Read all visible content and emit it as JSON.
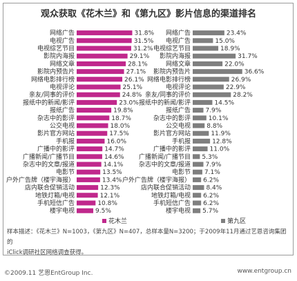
{
  "title": "观众获取《花木兰》和《第九区》影片信息的渠道排名",
  "colors": {
    "left_series": "#c0288c",
    "right_series": "#7f7f7f",
    "text": "#333333"
  },
  "chart_data": [
    {
      "type": "bar",
      "orientation": "horizontal",
      "series": [
        {
          "name": "花木兰",
          "color": "#c0288c"
        }
      ],
      "categories": [
        "网络广告",
        "电视广告",
        "电视综艺节目",
        "影院内海报",
        "网络文章",
        "影院内预告片",
        "网络电影排行榜",
        "电视评论",
        "亲友/同事的评价",
        "报纸中的新闻/影评",
        "报纸广告",
        "杂志中的影评",
        "公交电视",
        "影片官方网站",
        "手机报",
        "广播中的影评",
        "广播新闻/广播节目",
        "杂志中的文章/报道",
        "电影节",
        "户外广告牌（楼宇海报）",
        "店内联合促销活动",
        "地铁灯箱/电视",
        "手机短信广告",
        "楼宇电视"
      ],
      "values": [
        31.8,
        31.5,
        31.2,
        29.1,
        28.1,
        27.1,
        26.1,
        25.1,
        24.8,
        23.0,
        19.8,
        18.7,
        18.0,
        17.5,
        16.0,
        14.7,
        14.6,
        14.1,
        13.5,
        13.4,
        12.3,
        12.1,
        10.8,
        9.5
      ],
      "value_labels": [
        "31.8%",
        "31.5%",
        "31.2%",
        "29.1%",
        "28.1%",
        "27.1%",
        "26.1%",
        "25.1%",
        "24.8%",
        "23.0%",
        "19.8%",
        "18.7%",
        "18.0%",
        "17.5%",
        "16.0%",
        "14.7%",
        "14.6%",
        "14.1%",
        "13.5%",
        "13.4%",
        "12.3%",
        "12.1%",
        "10.8%",
        "9.5%"
      ],
      "legend": "花木兰"
    },
    {
      "type": "bar",
      "orientation": "horizontal",
      "series": [
        {
          "name": "第九区",
          "color": "#7f7f7f"
        }
      ],
      "categories": [
        "网络广告",
        "电视广告",
        "电视综艺节目",
        "影院内海报",
        "网络文章",
        "影院内预告片",
        "网络电影排行榜",
        "电视评论",
        "亲友/同事的评价",
        "报纸中的新闻/影评",
        "报纸广告",
        "杂志中的影评",
        "公交电视",
        "影片官方网站",
        "手机报",
        "广播中的影评",
        "广播新闻/广播节目",
        "杂志中的文章/报道",
        "电影节",
        "户外广告牌（楼宇海报）",
        "店内联合促销活动",
        "地铁灯箱/电视",
        "手机短信广告",
        "楼宇电视"
      ],
      "values": [
        23.4,
        15.0,
        18.9,
        31.7,
        22.0,
        36.6,
        26.9,
        22.9,
        28.2,
        14.5,
        7.9,
        10.1,
        8.8,
        11.9,
        12.8,
        11.0,
        5.3,
        7.9,
        7.1,
        6.2,
        8.4,
        6.2,
        6.2,
        5.7
      ],
      "value_labels": [
        "23.4%",
        "15.0%",
        "18.9%",
        "31.7%",
        "22.0%",
        "36.6%",
        "26.9%",
        "22.9%",
        "28.2%",
        "14.5%",
        "7.9%",
        "10.1%",
        "8.8%",
        "11.9%",
        "12.8%",
        "11.0%",
        "5.3%",
        "7.9%",
        "7.1%",
        "6.2%",
        "8.4%",
        "6.2%",
        "6.2%",
        "5.7%"
      ],
      "legend": "第九区"
    }
  ],
  "note": {
    "line1": "样本描述：《花木兰》N=1003，《第九区》N=407，总样本量N=3200；于2009年11月通过艺恩咨询集团的",
    "line2": "iClick调研社区网络调查获得。"
  },
  "footer": {
    "left": "©2009.11 艺恩EntGroup Inc.",
    "right": "www.entgroup.cn"
  }
}
